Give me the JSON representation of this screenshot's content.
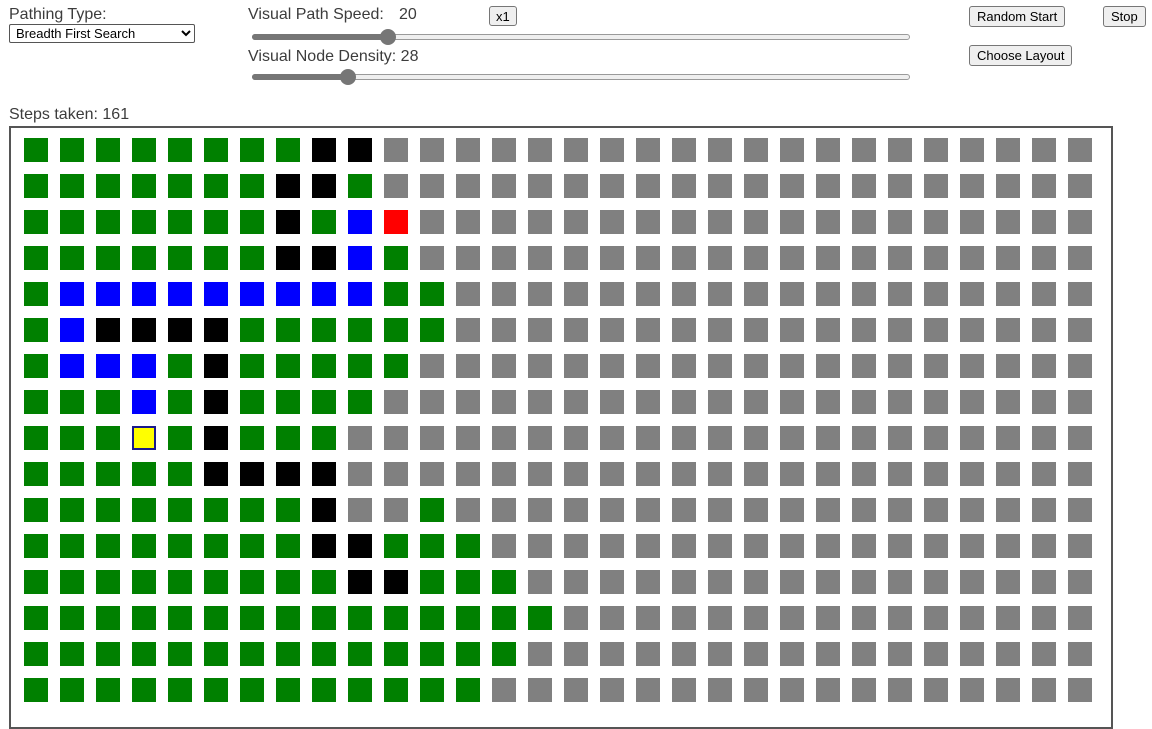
{
  "controls": {
    "pathing_label": "Pathing Type:",
    "pathing_selected": "Breadth First Search",
    "speed_label": "Visual Path Speed:",
    "speed_value": "20",
    "speed_fraction": 0.2,
    "multiplier_label": "x1",
    "density_label": "Visual Node Density: 28",
    "density_fraction": 0.137,
    "random_start_label": "Random Start",
    "stop_label": "Stop",
    "choose_layout_label": "Choose Layout"
  },
  "status": {
    "steps_text": "Steps taken: 161"
  },
  "legend_colors": {
    "G": "#008000",
    "X": "#808080",
    "B": "#000000",
    "P": "#0000ff",
    "R": "#ff0000",
    "Y": "#ffff00"
  },
  "grid": {
    "rows": [
      "GGGGGGGGBBXXXXXXXXXXXXXXXXXXXX",
      "GGGGGGGBBGXXXXXXXXXXXXXXXXXXXX",
      "GGGGGGGBGPRXXXXXXXXXXXXXXXXXXX",
      "GGGGGGGBBPGXXXXXXXXXXXXXXXXXXX",
      "GPPPPPPPPPGGXXXXXXXXXXXXXXXXXX",
      "GPBBBBGGGGGGXXXXXXXXXXXXXXXXXX",
      "GPPPGBGGGGGXXXXXXXXXXXXXXXXXXX",
      "GGGPGBGGGGXXXXXXXXXXXXXXXXXXXX",
      "GGGYGBGGGXXXXXXXXXXXXXXXXXXXXX",
      "GGGGGBBBBXXXXXXXXXXXXXXXXXXXXX",
      "GGGGGGGGBXXGXXXXXXXXXXXXXXXXXX",
      "GGGGGGGGBBGGGXXXXXXXXXXXXXXXXX",
      "GGGGGGGGGBBGGGXXXXXXXXXXXXXXXX",
      "GGGGGGGGGGGGGGGXXXXXXXXXXXXXXX",
      "GGGGGGGGGGGGGGXXXXXXXXXXXXXXXX",
      "GGGGGGGGGGGGGXXXXXXXXXXXXXXXXX"
    ]
  }
}
